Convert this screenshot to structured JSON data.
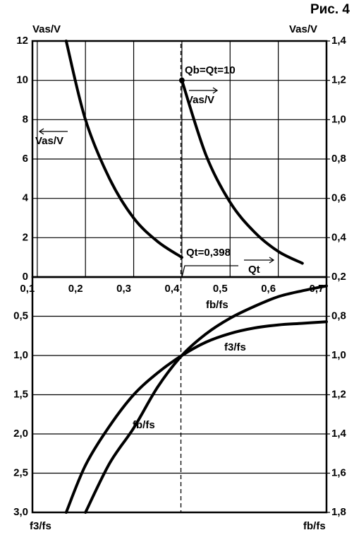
{
  "chart_data": [
    {
      "type": "line",
      "title": "Рис. 4",
      "y_label": "Vas/V",
      "y2_label": "Vas/V",
      "xlim": [
        0.09,
        0.7
      ],
      "xticks": [
        {
          "value": 0.1,
          "label": "0,1"
        },
        {
          "value": 0.2,
          "label": "0,2"
        },
        {
          "value": 0.3,
          "label": "0,3"
        },
        {
          "value": 0.4,
          "label": "0,4"
        },
        {
          "value": 0.5,
          "label": "0,5"
        },
        {
          "value": 0.6,
          "label": "0,6"
        },
        {
          "value": 0.7,
          "label": "0,7"
        }
      ],
      "ylim": [
        0,
        12
      ],
      "yticks": [
        0,
        2,
        4,
        6,
        8,
        10,
        12
      ],
      "y2lim": [
        0.2,
        1.4
      ],
      "y2ticks": [
        {
          "value": 0.2,
          "label": "0,2"
        },
        {
          "value": 0.4,
          "label": "0,4"
        },
        {
          "value": 0.6,
          "label": "0,6"
        },
        {
          "value": 0.8,
          "label": "0,8"
        },
        {
          "value": 1.0,
          "label": "1,0"
        },
        {
          "value": 1.2,
          "label": "1,2"
        },
        {
          "value": 1.4,
          "label": "1,4"
        }
      ],
      "grid": true,
      "series": [
        {
          "name": "Vas/V",
          "color": "#000000",
          "x": [
            0.16,
            0.2,
            0.25,
            0.3,
            0.35,
            0.4
          ],
          "values": [
            12,
            8,
            5.0,
            3.0,
            1.8,
            1.0
          ]
        },
        {
          "name": "Vas/V",
          "color": "#000000",
          "axis": "y2",
          "start_marker": true,
          "x": [
            0.4,
            0.45,
            0.5,
            0.55,
            0.6,
            0.65
          ],
          "values": [
            1.2,
            0.82,
            0.58,
            0.43,
            0.33,
            0.27
          ]
        }
      ],
      "annotations": [
        "Qb=Qt=10",
        "Qt"
      ],
      "threshold": {
        "value": 0.398,
        "label": "Qt=0,398"
      }
    },
    {
      "type": "line",
      "y_label": "f3/fs",
      "y2_label": "fb/fs",
      "xlim": [
        0.09,
        0.7
      ],
      "xticks": [
        0.1,
        0.2,
        0.3,
        0.4,
        0.5,
        0.6,
        0.7
      ],
      "ylim": [
        3.0,
        0
      ],
      "yticks": [
        {
          "value": 0.5,
          "label": "0,5"
        },
        {
          "value": 1.0,
          "label": "1,0"
        },
        {
          "value": 1.5,
          "label": "1,5"
        },
        {
          "value": 2.0,
          "label": "2,0"
        },
        {
          "value": 2.5,
          "label": "2,5"
        },
        {
          "value": 3.0,
          "label": "3,0"
        }
      ],
      "y2lim": [
        1.8,
        0.6
      ],
      "y2ticks": [
        {
          "value": 0.8,
          "label": "0,8"
        },
        {
          "value": 1.0,
          "label": "1,0"
        },
        {
          "value": 1.2,
          "label": "1,2"
        },
        {
          "value": 1.4,
          "label": "1,4"
        },
        {
          "value": 1.6,
          "label": "1,6"
        },
        {
          "value": 1.8,
          "label": "1,8"
        }
      ],
      "grid": true,
      "series": [
        {
          "name": "f3/fs",
          "color": "#000000",
          "x": [
            0.16,
            0.2,
            0.25,
            0.3,
            0.35,
            0.4,
            0.45,
            0.5,
            0.55,
            0.6,
            0.65,
            0.7
          ],
          "values": [
            3.0,
            2.4,
            1.9,
            1.5,
            1.22,
            1.0,
            0.83,
            0.72,
            0.65,
            0.61,
            0.59,
            0.57
          ]
        },
        {
          "name": "fb/fs",
          "color": "#000000",
          "axis": "y2",
          "x": [
            0.2,
            0.25,
            0.3,
            0.35,
            0.4,
            0.45,
            0.5,
            0.55,
            0.6,
            0.65,
            0.7
          ],
          "values": [
            1.8,
            1.55,
            1.37,
            1.16,
            1.0,
            0.89,
            0.81,
            0.75,
            0.7,
            0.67,
            0.645
          ]
        }
      ]
    }
  ]
}
